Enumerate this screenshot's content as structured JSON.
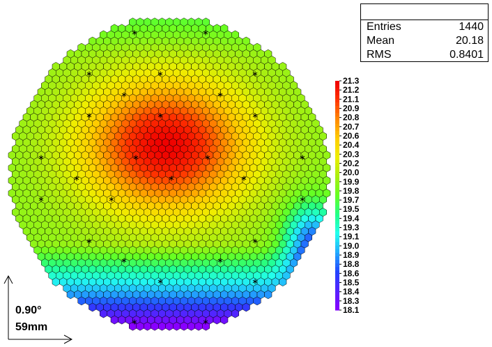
{
  "stats": {
    "title": "",
    "entries_label": "Entries",
    "entries_value": "1440",
    "mean_label": "Mean",
    "mean_value": "20.18",
    "rms_label": "RMS",
    "rms_value": "0.8401"
  },
  "overlay": {
    "angle_text": "0.90°",
    "scale_text": "59mm"
  },
  "chart_data": {
    "type": "heatmap",
    "title": "",
    "description_values": "hexagonal-cell map of 1440 entries, circular footprint; colour encodes value",
    "zmin": 18.1,
    "zmax": 21.3,
    "colorbar_ticks": [
      "21.3",
      "21.2",
      "21.1",
      "20.9",
      "20.8",
      "20.7",
      "20.6",
      "20.4",
      "20.3",
      "20.2",
      "20.0",
      "19.9",
      "19.8",
      "19.7",
      "19.5",
      "19.4",
      "19.3",
      "19.1",
      "19.0",
      "18.9",
      "18.8",
      "18.6",
      "18.5",
      "18.4",
      "18.3",
      "18.1"
    ],
    "palette": [
      "#8800ff",
      "#5522ff",
      "#2244ff",
      "#22aaff",
      "#22ffee",
      "#22ff88",
      "#66ff22",
      "#aaee11",
      "#eeee00",
      "#ffcc00",
      "#ff8800",
      "#ff3300",
      "#ee0000"
    ],
    "marker": "asterisk",
    "stats": {
      "entries": 1440,
      "mean": 20.18,
      "rms": 0.8401
    }
  }
}
